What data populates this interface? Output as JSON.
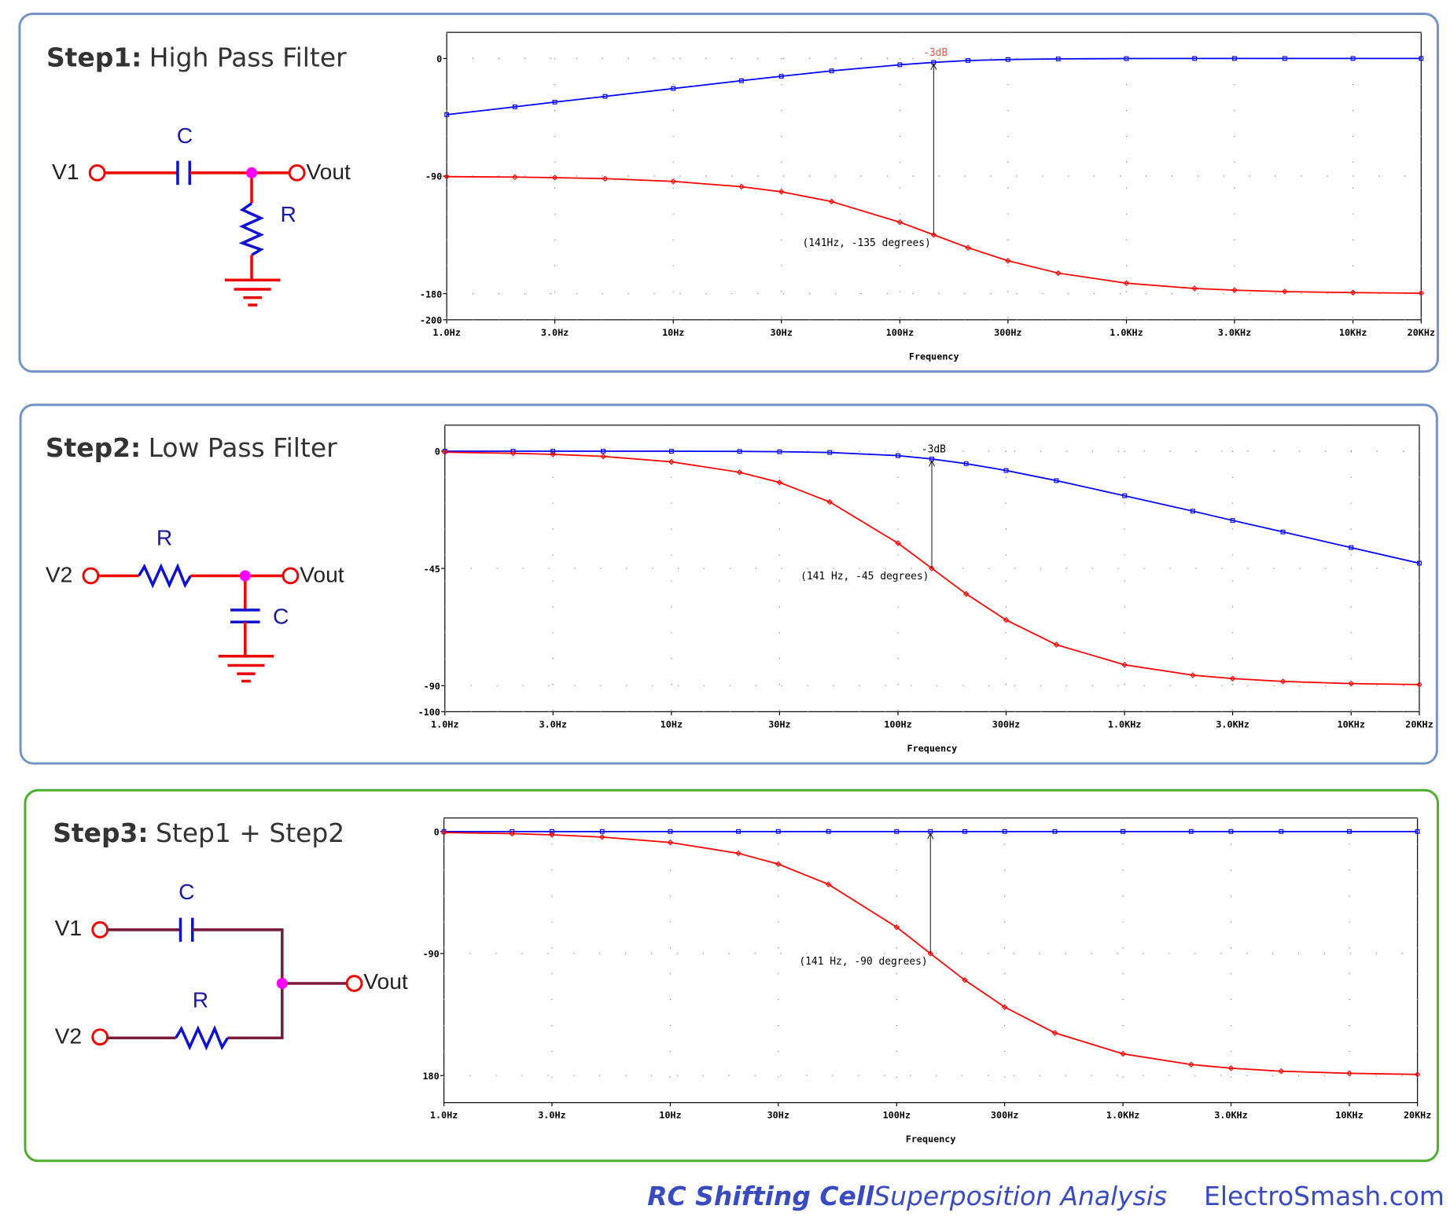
{
  "panels": [
    {
      "title_bold": "Step1:",
      "title": "High Pass Filter",
      "labels": [
        "V1",
        "C",
        "Vout",
        "R"
      ]
    },
    {
      "title_bold": "Step2:",
      "title": "Low Pass Filter",
      "labels": [
        "V2",
        "R",
        "Vout",
        "C"
      ]
    },
    {
      "title_bold": "Step3:",
      "title": "Step1 + Step2",
      "labels": [
        "V1",
        "C",
        "V2",
        "R",
        "Vout"
      ]
    }
  ],
  "chart_data": [
    {
      "type": "line",
      "log_x": true,
      "grid": true,
      "xlabel": "Frequency",
      "x": [
        1,
        2,
        3,
        5,
        10,
        20,
        30,
        50,
        100,
        141,
        200,
        300,
        500,
        1000,
        2000,
        3000,
        5000,
        10000,
        20000
      ],
      "series": [
        {
          "color": "#0000ff",
          "values": [
            -43.0,
            -37.0,
            -33.4,
            -29.0,
            -23.0,
            -17.0,
            -13.6,
            -9.5,
            -4.8,
            -3.0,
            -1.6,
            -0.8,
            -0.3,
            -0.1,
            0,
            0,
            0,
            0,
            0
          ]
        },
        {
          "color": "#ff0000",
          "values": [
            -90.4,
            -90.8,
            -91.2,
            -92.0,
            -94.1,
            -98.1,
            -102.0,
            -109.5,
            -125.3,
            -135,
            -144.8,
            -154.8,
            -164.3,
            -172.0,
            -176.0,
            -177.3,
            -178.4,
            -179.2,
            -179.6
          ]
        }
      ],
      "xlim": [
        1,
        20000
      ],
      "xticks": [
        {
          "value": 1,
          "label": "1.0Hz"
        },
        {
          "value": 3,
          "label": "3.0Hz"
        },
        {
          "value": 10,
          "label": "10Hz"
        },
        {
          "value": 30,
          "label": "30Hz"
        },
        {
          "value": 100,
          "label": "100Hz"
        },
        {
          "value": 300,
          "label": "300Hz"
        },
        {
          "value": 1000,
          "label": "1.0KHz"
        },
        {
          "value": 3000,
          "label": "3.0KHz"
        },
        {
          "value": 10000,
          "label": "10KHz"
        },
        {
          "value": 20000,
          "label": "20KHz"
        }
      ],
      "ylim": [
        -200,
        20
      ],
      "yticks": [
        0,
        -90,
        -180,
        -200
      ],
      "annotations": [
        {
          "text": "-3dB",
          "x": 141,
          "y": -3,
          "color": "#ff5050"
        },
        {
          "text": "(141Hz, -135 degrees)",
          "x": 141,
          "y": -135
        }
      ]
    },
    {
      "type": "line",
      "log_x": true,
      "grid": true,
      "xlabel": "Frequency",
      "x": [
        1,
        2,
        3,
        5,
        10,
        20,
        30,
        50,
        100,
        141,
        200,
        300,
        500,
        1000,
        2000,
        3000,
        5000,
        10000,
        20000
      ],
      "series": [
        {
          "color": "#0000ff",
          "values": [
            0,
            0,
            0,
            0,
            -0.02,
            -0.09,
            -0.2,
            -0.5,
            -1.7,
            -3.0,
            -4.8,
            -7.4,
            -11.3,
            -17.1,
            -23.0,
            -26.6,
            -31.0,
            -37.0,
            -43.0
          ]
        },
        {
          "color": "#ff0000",
          "values": [
            -0.4,
            -0.8,
            -1.2,
            -2.0,
            -4.1,
            -8.1,
            -12.0,
            -19.5,
            -35.3,
            -45,
            -54.8,
            -64.8,
            -74.3,
            -82.0,
            -86.0,
            -87.3,
            -88.4,
            -89.2,
            -89.6
          ]
        }
      ],
      "xlim": [
        1,
        20000
      ],
      "xticks": [
        {
          "value": 1,
          "label": "1.0Hz"
        },
        {
          "value": 3,
          "label": "3.0Hz"
        },
        {
          "value": 10,
          "label": "10Hz"
        },
        {
          "value": 30,
          "label": "30Hz"
        },
        {
          "value": 100,
          "label": "100Hz"
        },
        {
          "value": 300,
          "label": "300Hz"
        },
        {
          "value": 1000,
          "label": "1.0KHz"
        },
        {
          "value": 3000,
          "label": "3.0KHz"
        },
        {
          "value": 10000,
          "label": "10KHz"
        },
        {
          "value": 20000,
          "label": "20KHz"
        }
      ],
      "ylim": [
        -100,
        10
      ],
      "yticks": [
        0,
        -45,
        -90,
        -100
      ],
      "annotations": [
        {
          "text": "-3dB",
          "x": 141,
          "y": -3
        },
        {
          "text": "(141 Hz, -45 degrees)",
          "x": 141,
          "y": -45
        }
      ]
    },
    {
      "type": "line",
      "log_x": true,
      "grid": true,
      "xlabel": "Frequency",
      "x": [
        1,
        2,
        3,
        5,
        10,
        20,
        30,
        50,
        100,
        141,
        200,
        300,
        500,
        1000,
        2000,
        3000,
        5000,
        10000,
        20000
      ],
      "series": [
        {
          "color": "#0000ff",
          "values": [
            0,
            0,
            0,
            0,
            0,
            0,
            0,
            0,
            0,
            0,
            0,
            0,
            0,
            0,
            0,
            0,
            0,
            0,
            0
          ]
        },
        {
          "color": "#ff0000",
          "values": [
            -0.8,
            -1.6,
            -2.4,
            -4.1,
            -8.1,
            -16.1,
            -24.0,
            -39.0,
            -70.6,
            -90,
            -109.6,
            -129.5,
            -148.6,
            -164.0,
            -171.9,
            -174.6,
            -176.8,
            -178.4,
            -179.2
          ]
        }
      ],
      "xlim": [
        1,
        20000
      ],
      "xticks": [
        {
          "value": 1,
          "label": "1.0Hz"
        },
        {
          "value": 3,
          "label": "3.0Hz"
        },
        {
          "value": 10,
          "label": "10Hz"
        },
        {
          "value": 30,
          "label": "30Hz"
        },
        {
          "value": 100,
          "label": "100Hz"
        },
        {
          "value": 300,
          "label": "300Hz"
        },
        {
          "value": 1000,
          "label": "1.0KHz"
        },
        {
          "value": 3000,
          "label": "3.0KHz"
        },
        {
          "value": 10000,
          "label": "10KHz"
        },
        {
          "value": 20000,
          "label": "20KHz"
        }
      ],
      "ylim": [
        -200,
        10
      ],
      "yticks": [
        0,
        -90,
        {
          "value": -180,
          "label": "180"
        }
      ],
      "annotations": [
        {
          "text": "(141 Hz, -90 degrees)",
          "x": 141,
          "y": -90
        }
      ]
    }
  ],
  "footer": {
    "title": "RC Shifting Cell",
    "subtitle": "Superposition Analysis",
    "site": "ElectroSmash.com"
  }
}
